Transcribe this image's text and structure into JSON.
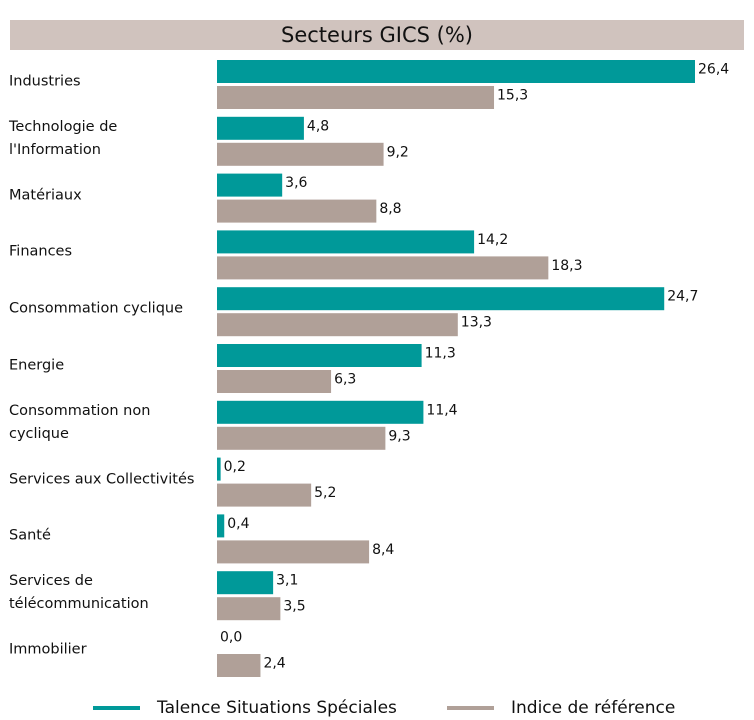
{
  "chart_data": {
    "type": "barh",
    "title": "Secteurs GICS (%)",
    "categories": [
      "Industries",
      "Technologie de l'Information",
      "Matériaux",
      "Finances",
      "Consommation cyclique",
      "Energie",
      "Consommation non cyclique",
      "Services aux Collectivités",
      "Santé",
      "Services de télécommunication",
      "Immobilier"
    ],
    "series": [
      {
        "name": "Talence Situations Spéciales",
        "color": "#009999",
        "values": [
          26.4,
          4.8,
          3.6,
          14.2,
          24.7,
          11.3,
          11.4,
          0.2,
          0.4,
          3.1,
          0.0
        ],
        "value_labels": [
          "26,4",
          "4,8",
          "3,6",
          "14,2",
          "24,7",
          "11,3",
          "11,4",
          "0,2",
          "0,4",
          "3,1",
          "0,0"
        ]
      },
      {
        "name": "Indice de référence",
        "color": "#b0a098",
        "values": [
          15.3,
          9.2,
          8.8,
          18.3,
          13.3,
          6.3,
          9.3,
          5.2,
          8.4,
          3.5,
          2.4
        ],
        "value_labels": [
          "15,3",
          "9,2",
          "8,8",
          "18,3",
          "13,3",
          "6,3",
          "9,3",
          "5,2",
          "8,4",
          "3,5",
          "2,4"
        ]
      }
    ],
    "legend": "bottom"
  }
}
